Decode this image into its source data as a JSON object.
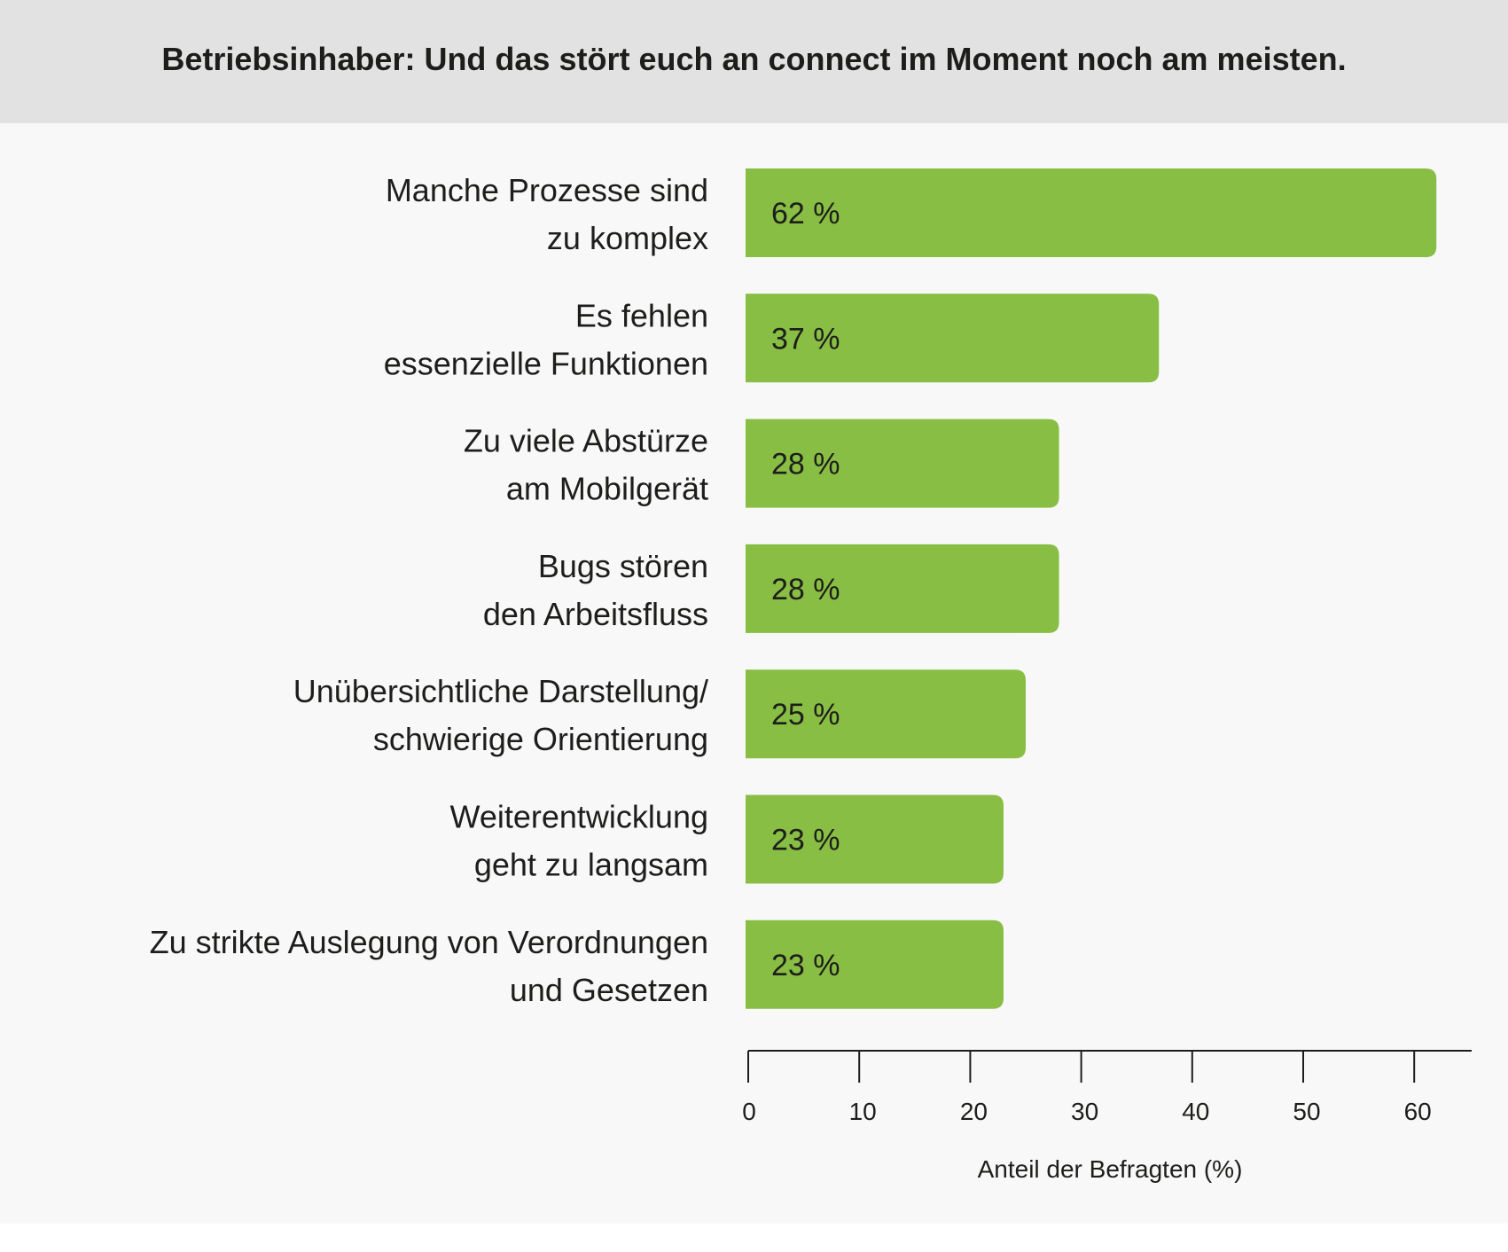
{
  "chart_data": {
    "type": "bar",
    "orientation": "horizontal",
    "title": "Betriebsinhaber: Und das stört euch an connect im Moment noch am meisten.",
    "categories": [
      [
        "Manche Prozesse sind",
        "zu komplex"
      ],
      [
        "Es fehlen",
        "essenzielle Funktionen"
      ],
      [
        "Zu viele Abstürze",
        "am Mobilgerät"
      ],
      [
        "Bugs stören",
        "den Arbeitsfluss"
      ],
      [
        "Unübersichtliche Darstellung/",
        "schwierige Orientierung"
      ],
      [
        "Weiterentwicklung",
        "geht zu langsam"
      ],
      [
        "Zu strikte Auslegung von Verordnungen",
        "und Gesetzen"
      ]
    ],
    "values": [
      62,
      37,
      28,
      28,
      25,
      23,
      23
    ],
    "value_labels": [
      "62 %",
      "37 %",
      "28 %",
      "28 %",
      "25 %",
      "23 %",
      "23 %"
    ],
    "xlabel": "Anteil der Befragten (%)",
    "xticks": [
      "0",
      "10",
      "20",
      "30",
      "40",
      "50",
      "60"
    ],
    "xlim": [
      0,
      65
    ],
    "grid": false,
    "bar_color": "#88be43"
  }
}
